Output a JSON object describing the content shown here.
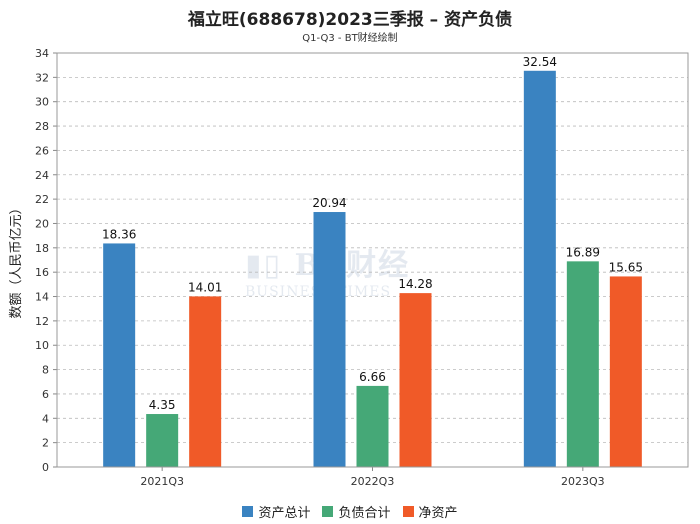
{
  "title": "福立旺(688678)2023三季报 – 资产负债",
  "subtitle": "Q1-Q3 - BT财经绘制",
  "watermark": {
    "brand": "BT财经",
    "sub": "BUSINESS TIMES"
  },
  "chart_data": {
    "type": "bar",
    "title": "福立旺(688678)2023三季报 – 资产负债",
    "subtitle": "Q1-Q3 - BT财经绘制",
    "ylabel": "数额（人民币亿元）",
    "xlabel": "",
    "ylim": [
      0,
      34
    ],
    "yticks": [
      0,
      2,
      4,
      6,
      8,
      10,
      12,
      14,
      16,
      18,
      20,
      22,
      24,
      26,
      28,
      30,
      32,
      34
    ],
    "grid": true,
    "legend_position": "bottom",
    "categories": [
      "2021Q3",
      "2022Q3",
      "2023Q3"
    ],
    "series": [
      {
        "name": "资产总计",
        "color": "#3a83c1",
        "values": [
          18.36,
          20.94,
          32.54
        ]
      },
      {
        "name": "负债合计",
        "color": "#45a877",
        "values": [
          4.35,
          6.66,
          16.89
        ]
      },
      {
        "name": "净资产",
        "color": "#f05a28",
        "values": [
          14.01,
          14.28,
          15.65
        ]
      }
    ]
  }
}
